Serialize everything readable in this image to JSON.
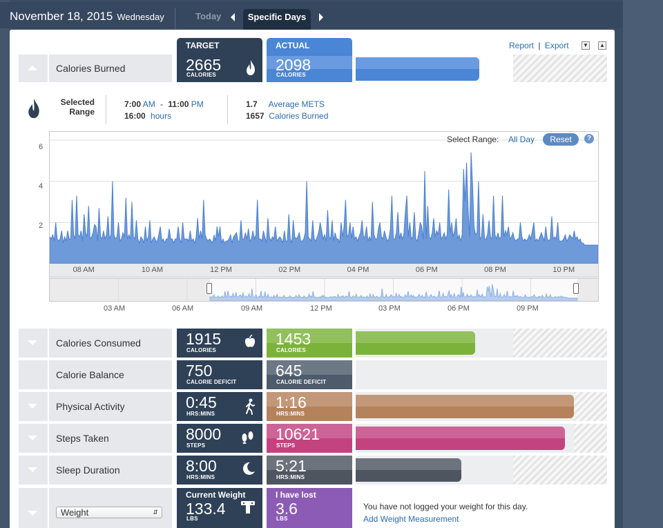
{
  "header": {
    "date": "November 18, 2015",
    "weekday": "Wednesday",
    "today_label": "Today",
    "specific_days_label": "Specific Days"
  },
  "toolbar": {
    "report": "Report",
    "export": "Export",
    "separator": "|"
  },
  "calories_burned": {
    "label": "Calories Burned",
    "target_header": "TARGET",
    "actual_header": "ACTUAL",
    "target_value": "2665",
    "target_unit": "CALORIES",
    "actual_value": "2098",
    "actual_unit": "CALORIES",
    "progress": 0.787
  },
  "selected_range": {
    "title_line1": "Selected",
    "title_line2": "Range",
    "start_time": "7:00",
    "start_ampm": "AM",
    "dash": "-",
    "end_time": "11:00",
    "end_ampm": "PM",
    "duration": "16:00",
    "duration_unit": "hours",
    "mets_value": "1.7",
    "mets_label": "Average METS",
    "cal_value": "1657",
    "cal_label": "Calories Burned"
  },
  "chart_controls": {
    "select_range": "Select Range:",
    "all_day": "All Day",
    "reset": "Reset",
    "help": "?"
  },
  "chart_data": {
    "type": "area",
    "ylim": [
      0,
      6.4
    ],
    "yticks": [
      "2",
      "4",
      "6"
    ],
    "xticks": [
      "08 AM",
      "10 AM",
      "12 PM",
      "02 PM",
      "04 PM",
      "06 PM",
      "08 PM",
      "10 PM"
    ],
    "xrange_hours": [
      7,
      23
    ],
    "nav_xticks": [
      "03 AM",
      "06 AM",
      "09 AM",
      "12 PM",
      "03 PM",
      "06 PM",
      "09 PM"
    ],
    "series": [
      {
        "values": [
          1.3,
          1.2,
          1.4,
          1.1,
          2.0,
          1.2,
          1.1,
          1.2,
          1.6,
          1.0,
          1.3,
          1.1,
          1.6,
          1.2,
          1.2,
          3.1,
          1.4,
          1.2,
          3.3,
          1.4,
          1.3,
          1.6,
          1.1,
          2.4,
          1.5,
          1.3,
          2.8,
          1.2,
          1.3,
          1.5,
          1.9,
          1.8,
          1.1,
          2.7,
          1.3,
          1.2,
          1.6,
          1.2,
          1.4,
          2.3,
          1.2,
          1.4,
          4.0,
          1.4,
          1.2,
          1.3,
          2.0,
          1.1,
          1.2,
          1.5,
          1.3,
          3.2,
          1.2,
          1.4,
          1.2,
          3.0,
          1.3,
          1.2,
          2.1,
          1.2,
          1.0,
          1.3,
          1.2,
          1.0,
          1.8,
          1.1,
          1.3,
          2.1,
          1.0,
          1.2,
          1.3,
          1.1,
          1.1,
          1.4,
          1.8,
          1.1,
          1.2,
          1.0,
          1.2,
          1.2,
          1.7,
          1.2,
          1.2,
          1.0,
          1.2,
          1.2,
          1.8,
          1.2,
          1.0,
          2.0,
          1.2,
          1.2,
          1.2,
          1.1,
          1.6,
          1.1,
          1.2,
          1.0,
          1.3,
          2.2,
          1.2,
          1.6,
          1.2,
          3.1,
          1.4,
          1.2,
          1.1,
          1.2,
          1.1,
          1.0,
          1.4,
          1.1,
          1.8,
          1.3,
          1.8,
          1.0,
          1.2,
          1.0,
          1.1,
          1.1,
          1.2,
          1.4,
          1.0,
          1.3,
          1.4,
          1.5,
          1.1,
          1.1,
          2.1,
          1.2,
          1.2,
          1.5,
          1.2,
          1.7,
          1.1,
          1.2,
          1.6,
          1.2,
          1.4,
          3.1,
          1.2,
          1.2,
          1.1,
          1.6,
          1.3,
          1.0,
          2.2,
          1.3,
          1.1,
          1.3,
          1.2,
          1.8,
          1.1,
          1.2,
          1.3,
          1.2,
          1.0,
          1.6,
          1.1,
          1.1,
          2.4,
          1.2,
          1.0,
          2.1,
          1.3,
          1.2,
          1.3,
          1.5,
          1.1,
          1.1,
          1.2,
          1.5,
          4.0,
          1.3,
          1.2,
          1.1,
          2.1,
          1.2,
          1.1,
          1.3,
          1.5,
          2.0,
          1.6,
          1.2,
          1.4,
          1.1,
          2.6,
          1.3,
          1.2,
          2.1,
          1.1,
          1.5,
          1.2,
          1.2,
          1.0,
          2.0,
          1.3,
          1.8,
          3.1,
          1.3,
          1.4,
          2.0,
          1.2,
          1.8,
          1.2,
          1.3,
          1.1,
          1.3,
          1.5,
          2.1,
          1.3,
          1.3,
          1.8,
          1.1,
          1.3,
          1.1,
          3.0,
          1.4,
          1.2,
          1.2,
          1.7,
          2.0,
          1.3,
          1.2,
          1.6,
          1.3,
          1.1,
          1.2,
          1.7,
          3.3,
          1.2,
          1.2,
          1.5,
          2.5,
          1.2,
          1.5,
          1.2,
          1.4,
          2.5,
          3.3,
          1.3,
          2.0,
          1.2,
          1.3,
          2.5,
          1.2,
          1.1,
          1.5,
          2.0,
          1.8,
          1.2,
          4.5,
          1.2,
          2.8,
          1.3,
          1.2,
          1.5,
          2.2,
          1.3,
          1.6,
          1.4,
          2.0,
          1.2,
          1.3,
          1.5,
          1.2,
          1.4,
          3.6,
          1.5,
          2.0,
          1.3,
          1.6,
          2.2,
          1.2,
          1.4,
          1.1,
          1.4,
          4.6,
          3.0,
          4.9,
          2.7,
          1.3,
          5.4,
          3.8,
          1.8,
          1.4,
          1.5,
          4.0,
          1.2,
          1.3,
          2.4,
          1.2,
          1.2,
          1.4,
          2.1,
          1.3,
          1.2,
          3.3,
          1.4,
          1.2,
          1.5,
          1.2,
          1.3,
          3.3,
          1.3,
          1.6,
          1.4,
          1.8,
          1.2,
          1.3,
          1.5,
          1.2,
          1.1,
          1.2,
          1.2,
          2.0,
          1.3,
          1.1,
          1.2,
          1.1,
          1.2,
          1.4,
          1.2,
          1.6,
          2.0,
          1.1,
          1.2,
          1.1,
          1.3,
          1.5,
          1.3,
          1.1,
          1.8,
          1.2,
          1.1,
          1.2,
          2.3,
          1.2,
          1.3,
          1.2,
          2.0,
          1.1,
          1.1,
          1.1,
          1.2,
          1.4,
          1.1,
          1.2,
          1.4,
          1.3,
          1.2,
          1.6,
          1.2,
          1.3,
          1.1,
          1.2,
          1.0,
          1.0,
          0.9,
          0.9,
          0.9,
          0.9,
          0.9,
          0.9,
          0.9,
          0.9,
          0.9,
          0.9
        ]
      }
    ]
  },
  "rows": [
    {
      "label": "Calories Consumed",
      "target_value": "1915",
      "target_unit": "CALORIES",
      "actual_value": "1453",
      "actual_unit": "CALORIES",
      "icon": "apple-icon",
      "color": "#7bb33a",
      "progress": 0.758
    },
    {
      "label": "Calorie Balance",
      "target_value": "750",
      "target_unit": "CALORIE DEFICIT",
      "actual_value": "645",
      "actual_unit": "CALORIE DEFICIT",
      "icon": "",
      "color": "#4d5b6b",
      "progress": 0
    },
    {
      "label": "Physical Activity",
      "target_value": "0:45",
      "target_unit": "HRS:MINS",
      "actual_value": "1:16",
      "actual_unit": "HRS:MINS",
      "icon": "walker-icon",
      "color": "#b5825c",
      "progress": 1.69
    },
    {
      "label": "Steps Taken",
      "target_value": "8000",
      "target_unit": "STEPS",
      "actual_value": "10621",
      "actual_unit": "STEPS",
      "icon": "footprints-icon",
      "color": "#c2437f",
      "progress": 1.33
    },
    {
      "label": "Sleep Duration",
      "target_value": "8:00",
      "target_unit": "HRS:MINS",
      "actual_value": "5:21",
      "actual_unit": "HRS:MINS",
      "icon": "moon-icon",
      "color": "#4e5560",
      "progress": 0.669
    }
  ],
  "weight": {
    "select_value": "Weight",
    "target_label": "Current Weight",
    "target_value": "133.4",
    "target_unit": "LBS",
    "actual_label": "I have lost",
    "actual_value": "3.6",
    "actual_unit": "LBS",
    "message": "You have not logged your weight for this day.",
    "link": "Add Weight Measurement",
    "color": "#8c5bb5"
  }
}
